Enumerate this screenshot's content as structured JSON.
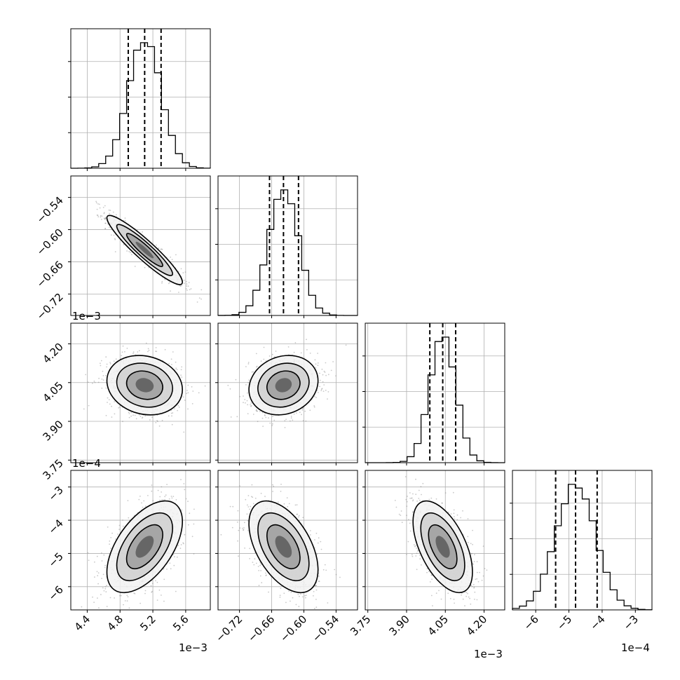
{
  "chart_data": {
    "type": "corner",
    "parameters": [
      {
        "ticks": [
          4.4,
          4.8,
          5.2,
          5.6
        ],
        "tick_labels": [
          "4.4",
          "4.8",
          "5.2",
          "5.6"
        ],
        "offset": "1e−3",
        "range": [
          4.2,
          5.9
        ],
        "mean": 5.1,
        "std": 0.2,
        "quantiles": [
          4.9,
          5.1,
          5.3
        ]
      },
      {
        "ticks": [
          -0.72,
          -0.66,
          -0.6,
          -0.54
        ],
        "tick_labels": [
          "−0.72",
          "−0.66",
          "−0.60",
          "−0.54"
        ],
        "offset": "1e−3",
        "range": [
          -0.76,
          -0.5
        ],
        "mean": -0.638,
        "std": 0.028,
        "quantiles": [
          -0.664,
          -0.638,
          -0.61
        ]
      },
      {
        "ticks": [
          3.75,
          3.9,
          4.05,
          4.2
        ],
        "tick_labels": [
          "3.75",
          "3.90",
          "4.05",
          "4.20"
        ],
        "offset": "1e−4",
        "axis_offset": "1e−3",
        "range": [
          3.74,
          4.28
        ],
        "mean": 4.04,
        "std": 0.05,
        "quantiles": [
          3.99,
          4.04,
          4.09
        ]
      },
      {
        "ticks": [
          -6,
          -5,
          -4,
          -3
        ],
        "tick_labels": [
          "−6",
          "−5",
          "−4",
          "−3"
        ],
        "offset": "1e−4",
        "range": [
          -6.7,
          -2.5
        ],
        "mean": -4.8,
        "std": 0.6,
        "quantiles": [
          -5.4,
          -4.8,
          -4.15
        ]
      }
    ],
    "correlations": {
      "1,0": -0.93,
      "2,0": -0.15,
      "2,1": 0.15,
      "3,0": 0.55,
      "3,1": -0.5,
      "3,2": -0.55
    },
    "grid": true,
    "colors": {
      "line": "#000000",
      "points": "#888888",
      "grid": "#b0b0b0"
    }
  }
}
